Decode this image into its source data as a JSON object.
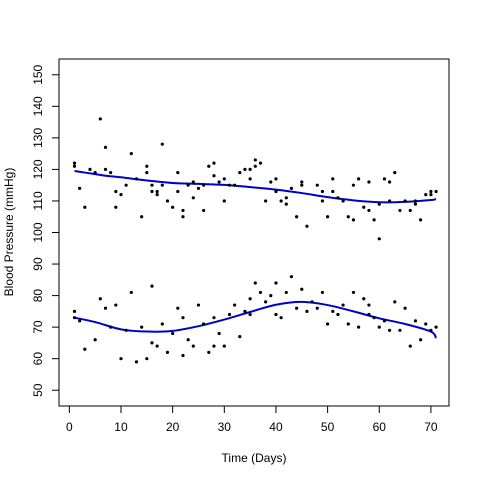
{
  "chart_data": {
    "type": "scatter",
    "title": "",
    "xlabel": "Time (Days)",
    "ylabel": "Blood Pressure (mmHg)",
    "xlim": [
      -2,
      73.5
    ],
    "ylim": [
      45,
      155
    ],
    "xticks": [
      0,
      10,
      20,
      30,
      40,
      50,
      60,
      70
    ],
    "yticks": [
      50,
      60,
      70,
      80,
      90,
      100,
      110,
      120,
      130,
      140,
      150
    ],
    "grid": false,
    "legend": "none",
    "point_color": "#000000",
    "curve_color": "#0000cc",
    "series": [
      {
        "kind": "points",
        "x": [
          1,
          1,
          2,
          3,
          4,
          5,
          6,
          7,
          7,
          8,
          9,
          9,
          10,
          11,
          12,
          13,
          14,
          15,
          15,
          16,
          16,
          17,
          17,
          18,
          18,
          19,
          20,
          21,
          21,
          22,
          22,
          23,
          24,
          24,
          25,
          26,
          26,
          27,
          28,
          28,
          29,
          30,
          30,
          31,
          32,
          33,
          34,
          35,
          35,
          36,
          36,
          37,
          38,
          39,
          40,
          40,
          41,
          42,
          42,
          43,
          44,
          45,
          45,
          46,
          48,
          49,
          49,
          50,
          51,
          51,
          52,
          53,
          54,
          55,
          55,
          56,
          57,
          58,
          58,
          59,
          60,
          60,
          61,
          62,
          62,
          63,
          64,
          65,
          66,
          67,
          67,
          68,
          69,
          70,
          70,
          71
        ],
        "y": [
          121,
          122,
          114,
          108,
          120,
          119,
          136,
          127,
          120,
          119,
          113,
          108,
          112,
          115,
          125,
          117,
          105,
          121,
          119,
          115,
          113,
          113,
          112,
          128,
          115,
          110,
          108,
          113,
          119,
          105,
          107,
          115,
          116,
          111,
          114,
          115,
          107,
          121,
          118,
          122,
          116,
          117,
          110,
          115,
          115,
          119,
          120,
          120,
          117,
          121,
          123,
          122,
          110,
          116,
          113,
          117,
          110,
          111,
          109,
          114,
          105,
          116,
          115,
          102,
          115,
          113,
          110,
          105,
          113,
          117,
          111,
          110,
          105,
          104,
          115,
          117,
          108,
          116,
          107,
          104,
          109,
          98,
          117,
          116,
          110,
          119,
          107,
          110,
          107,
          110,
          109,
          104,
          112,
          113,
          112,
          113
        ]
      },
      {
        "kind": "points",
        "x": [
          1,
          1,
          2,
          3,
          5,
          6,
          7,
          8,
          9,
          10,
          11,
          12,
          13,
          14,
          15,
          16,
          16,
          17,
          18,
          19,
          20,
          21,
          22,
          22,
          23,
          24,
          25,
          26,
          27,
          28,
          28,
          29,
          30,
          31,
          32,
          33,
          34,
          35,
          35,
          36,
          37,
          38,
          39,
          40,
          40,
          41,
          42,
          43,
          44,
          45,
          46,
          47,
          48,
          49,
          50,
          51,
          52,
          53,
          54,
          55,
          56,
          57,
          58,
          58,
          59,
          60,
          61,
          62,
          63,
          64,
          65,
          66,
          67,
          68,
          69,
          70,
          71
        ],
        "y": [
          73,
          75,
          72,
          63,
          66,
          79,
          76,
          70,
          77,
          60,
          69,
          81,
          59,
          70,
          60,
          65,
          83,
          64,
          71,
          62,
          68,
          76,
          61,
          73,
          66,
          64,
          77,
          71,
          62,
          64,
          73,
          68,
          64,
          74,
          77,
          67,
          75,
          79,
          74,
          84,
          81,
          78,
          80,
          84,
          74,
          73,
          81,
          86,
          76,
          82,
          75,
          78,
          76,
          81,
          71,
          75,
          74,
          77,
          71,
          81,
          70,
          79,
          77,
          74,
          73,
          70,
          72,
          69,
          78,
          69,
          76,
          64,
          72,
          66,
          71,
          69,
          70
        ]
      },
      {
        "kind": "curve",
        "x": [
          1,
          3,
          5,
          7,
          10,
          15,
          20,
          25,
          30,
          35,
          40,
          45,
          50,
          55,
          60,
          65,
          70,
          71
        ],
        "y": [
          119.5,
          119,
          118.5,
          118,
          117.5,
          116.5,
          115.7,
          115.4,
          115.1,
          114.4,
          113.6,
          112.5,
          111.2,
          110.2,
          109.6,
          109.7,
          110.3,
          110.6
        ]
      },
      {
        "kind": "curve",
        "x": [
          1,
          5,
          10,
          15,
          20,
          25,
          30,
          35,
          40,
          45,
          50,
          55,
          60,
          65,
          70,
          71
        ],
        "y": [
          73,
          71.6,
          69.3,
          68.6,
          68.8,
          70.3,
          72.4,
          74.8,
          77.1,
          78,
          77,
          75,
          72.8,
          71,
          68.6,
          66.5
        ]
      }
    ]
  }
}
